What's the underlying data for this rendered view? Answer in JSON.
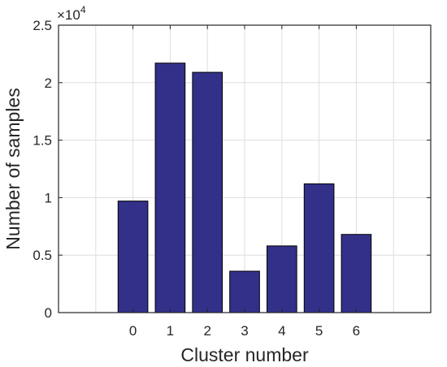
{
  "chart_data": {
    "type": "bar",
    "categories": [
      "0",
      "1",
      "2",
      "3",
      "4",
      "5",
      "6"
    ],
    "values": [
      9700,
      21700,
      20900,
      3600,
      5800,
      11200,
      6800
    ],
    "xlabel": "Cluster number",
    "ylabel": "Number of samples",
    "ylim": [
      0,
      25000
    ],
    "xlim": [
      -2,
      8
    ],
    "yticks": [
      0,
      0.5,
      1,
      1.5,
      2,
      2.5
    ],
    "ytick_labels": [
      "0",
      "0.5",
      "1",
      "1.5",
      "2",
      "2.5"
    ],
    "y_multiplier": {
      "base": "×10",
      "exponent": "4"
    },
    "grid": true,
    "bar_color": "#33308a"
  }
}
